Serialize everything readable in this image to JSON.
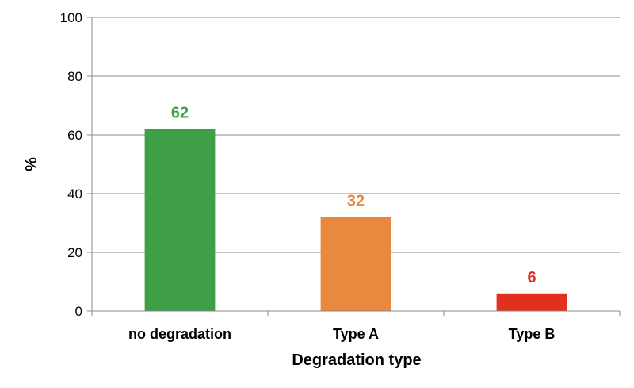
{
  "chart_data": {
    "type": "bar",
    "categories": [
      "no degradation",
      "Type A",
      "Type B"
    ],
    "values": [
      62,
      32,
      6
    ],
    "data_labels": [
      "62",
      "32",
      "6"
    ],
    "colors": [
      "#3f9f46",
      "#e8893f",
      "#e2301f"
    ],
    "xlabel": "Degradation type",
    "ylabel": "%",
    "ylim": [
      0,
      100
    ],
    "yticks": [
      0,
      20,
      40,
      60,
      80,
      100
    ],
    "ytick_labels": [
      "0",
      "20",
      "40",
      "60",
      "80",
      "100"
    ],
    "grid": true,
    "legend": "none"
  }
}
